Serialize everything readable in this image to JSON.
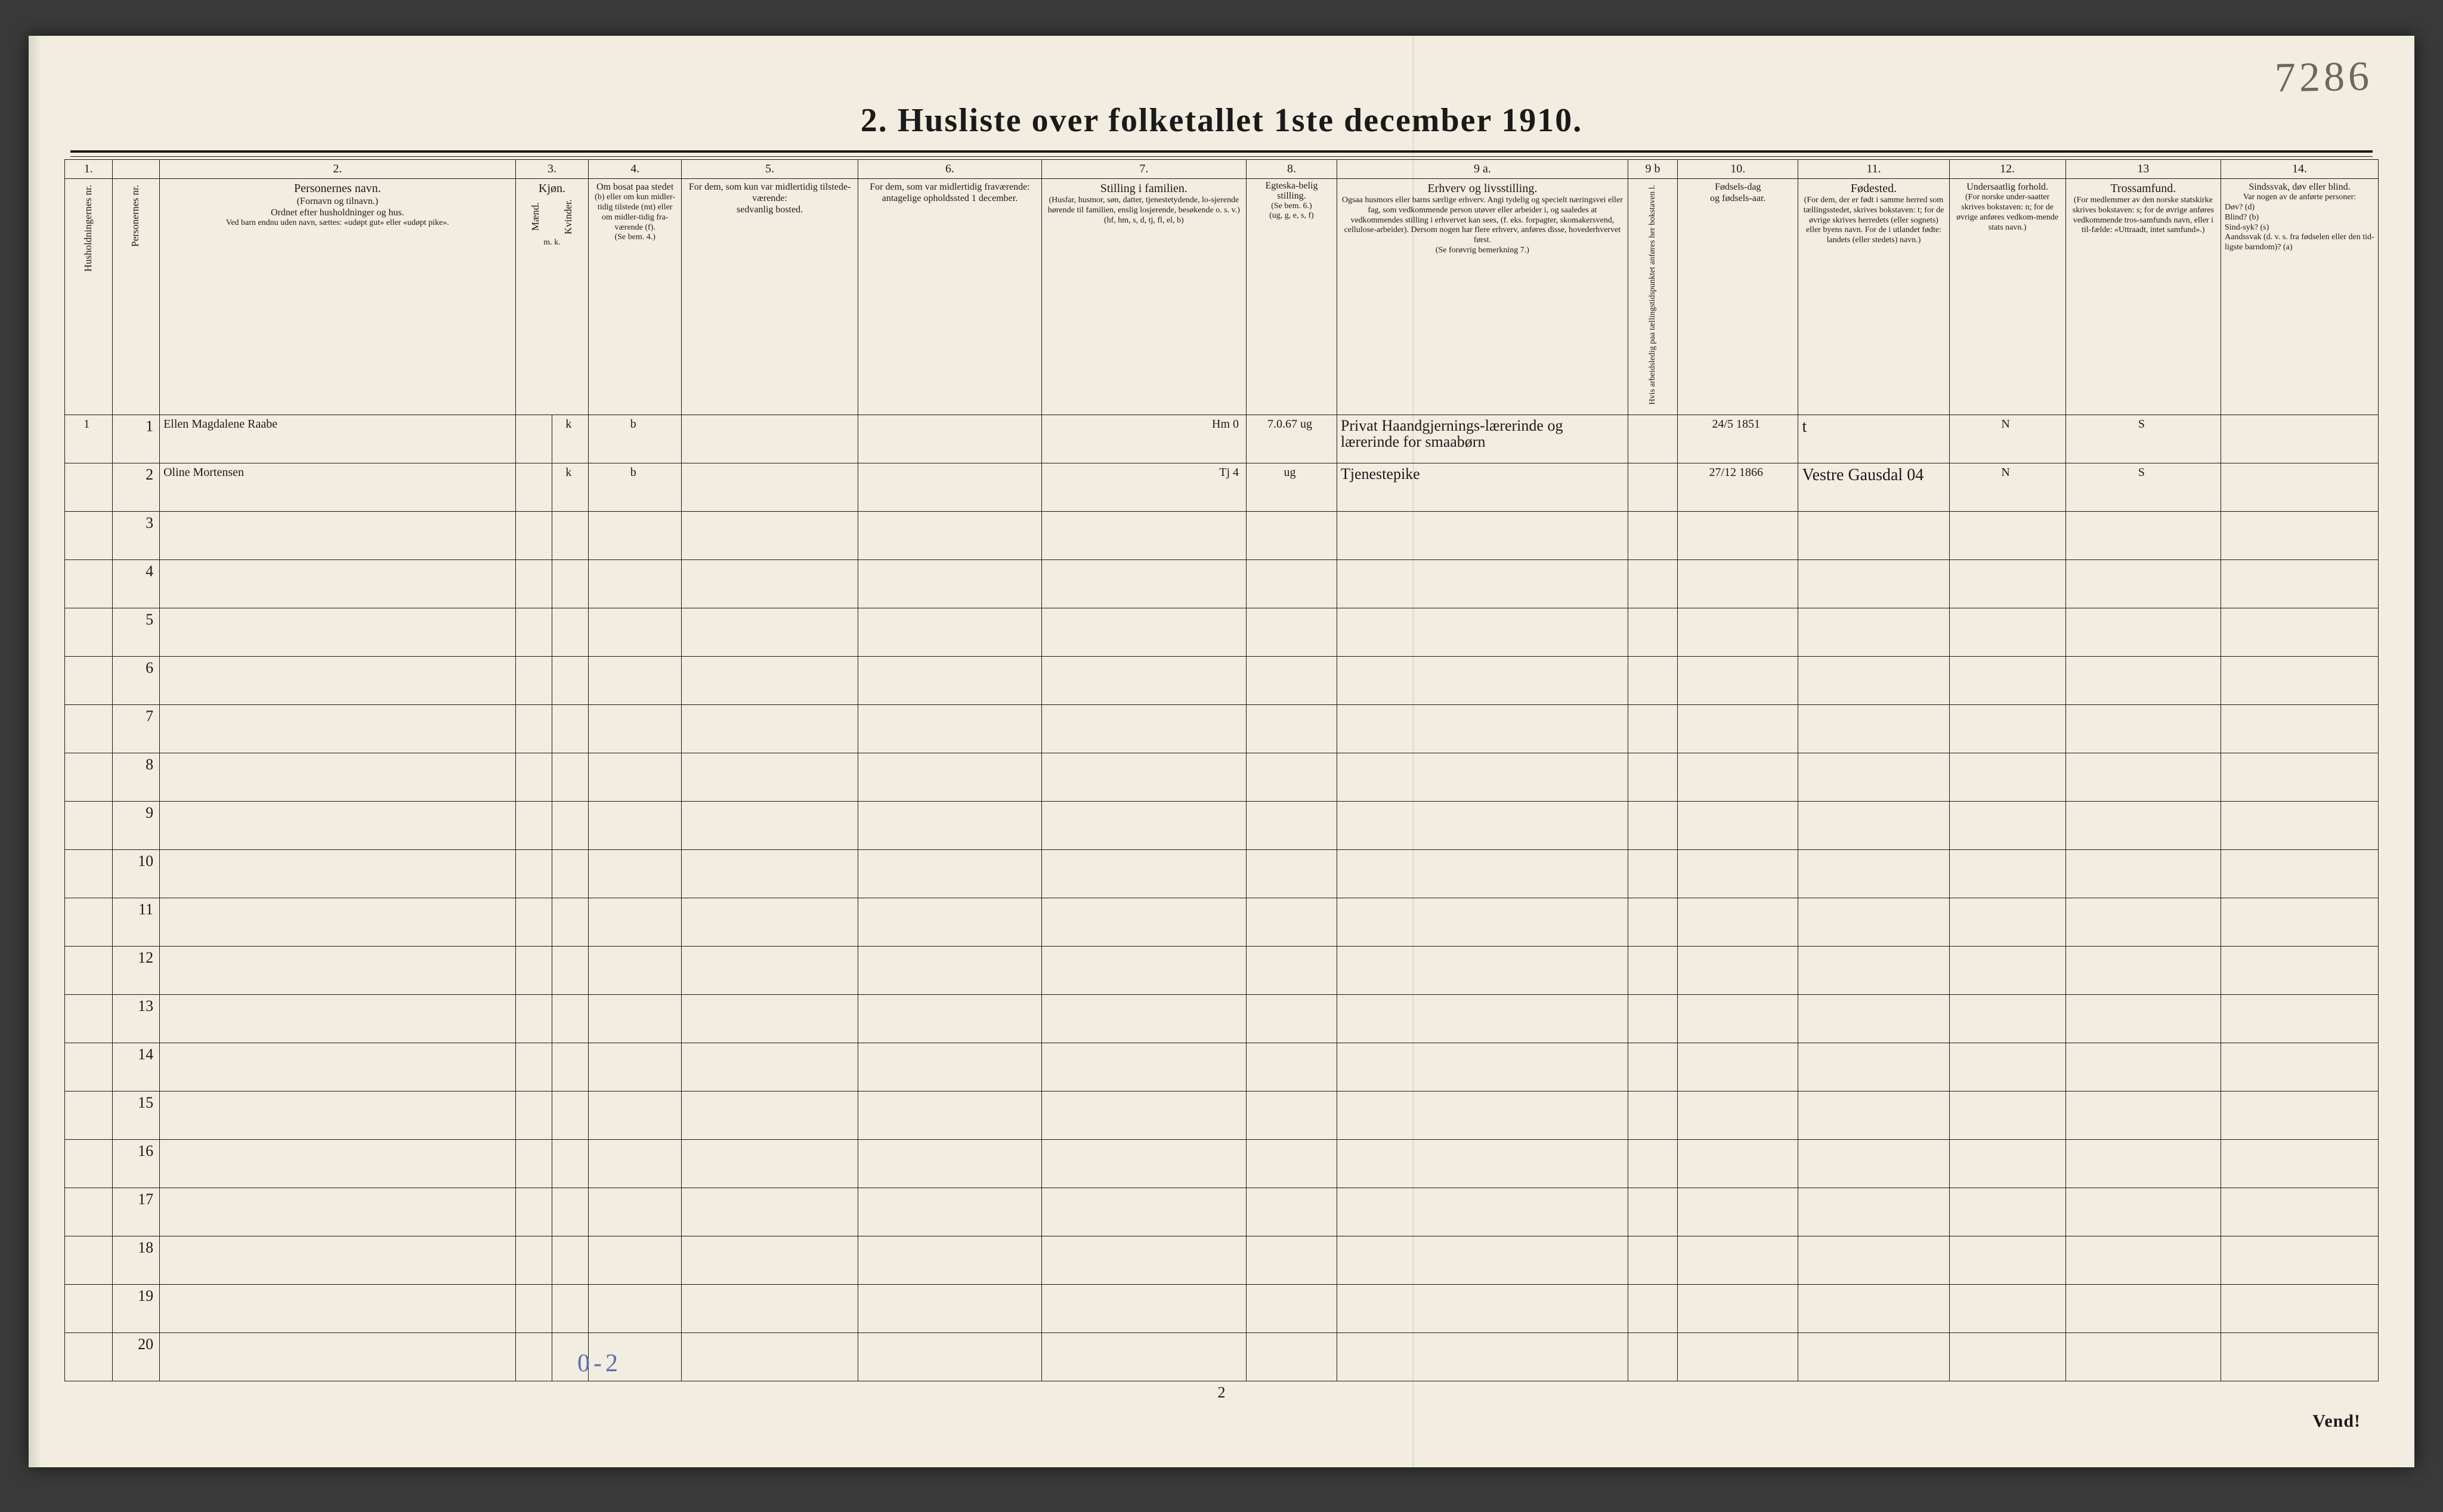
{
  "margin_number": "7286",
  "title": "2.  Husliste over folketallet 1ste december 1910.",
  "page_number": "2",
  "vend": "Vend!",
  "footer_hand": "0-2",
  "column_numbers": [
    "1.",
    "",
    "2.",
    "3.",
    "4.",
    "5.",
    "6.",
    "7.",
    "8.",
    "9 a.",
    "9 b",
    "10.",
    "11.",
    "12.",
    "13",
    "14."
  ],
  "headers": {
    "c1a": "Husholdningernes nr.",
    "c1b": "Personernes nr.",
    "c2_title": "Personernes navn.",
    "c2_sub1": "(Fornavn og tilnavn.)",
    "c2_sub2": "Ordnet efter husholdninger og hus.",
    "c2_sub3": "Ved barn endnu uden navn, sættes: «udøpt gut» eller «udøpt pike».",
    "c3_title": "Kjøn.",
    "c3_m": "Mænd.",
    "c3_k": "Kvinder.",
    "c3_foot": "m.  k.",
    "c4_title": "Om bosat paa stedet",
    "c4_body": "(b) eller om kun midler-tidig tilstede (mt) eller om midler-tidig fra-værende (f).",
    "c4_foot": "(Se bem. 4.)",
    "c5_title": "For dem, som kun var midlertidig tilstede-værende:",
    "c5_body": "sedvanlig bosted.",
    "c6_title": "For dem, som var midlertidig fraværende:",
    "c6_body": "antagelige opholdssted 1 december.",
    "c7_title": "Stilling i familien.",
    "c7_body": "(Husfar, husmor, søn, datter, tjenestetydende, lo-sjerende hørende til familien, enslig losjerende, besøkende o. s. v.)",
    "c7_foot": "(hf, hm, s, d, tj, fl, el, b)",
    "c8_title": "Egteska-belig stilling.",
    "c8_body": "(Se bem. 6.)",
    "c8_foot": "(ug, g, e, s, f)",
    "c9a_title": "Erhverv og livsstilling.",
    "c9a_body": "Ogsaa husmors eller barns særlige erhverv. Angi tydelig og specielt næringsvei eller fag, som vedkommende person utøver eller arbeider i, og saaledes at vedkommendes stilling i erhvervet kan sees, (f. eks. forpagter, skomakersvend, cellulose-arbeider). Dersom nogen har flere erhverv, anføres disse, hovederhvervet først.",
    "c9a_foot": "(Se forøvrig bemerkning 7.)",
    "c9b": "Hvis arbeidsledig paa tællingstidspunktet anføres her bokstaven l.",
    "c10_title": "Fødsels-dag",
    "c10_body": "og fødsels-aar.",
    "c11_title": "Fødested.",
    "c11_body": "(For dem, der er født i samme herred som tællingsstedet, skrives bokstaven: t; for de øvrige skrives herredets (eller sognets) eller byens navn. For de i utlandet fødte: landets (eller stedets) navn.)",
    "c12_title": "Undersaatlig forhold.",
    "c12_body": "(For norske under-saatter skrives bokstaven: n; for de øvrige anføres vedkom-mende stats navn.)",
    "c13_title": "Trossamfund.",
    "c13_body": "(For medlemmer av den norske statskirke skrives bokstaven: s; for de øvrige anføres vedkommende tros-samfunds navn, eller i til-fælde: «Uttraadt, intet samfund».)",
    "c14_title": "Sindssvak, døv eller blind.",
    "c14_body": "Var nogen av de anførte personer:",
    "c14_l1": "Døv?         (d)",
    "c14_l2": "Blind?       (b)",
    "c14_l3": "Sind-syk?  (s)",
    "c14_l4": "Aandssvak (d. v. s. fra fødselen eller den tid-ligste barndom)? (a)"
  },
  "rows": [
    {
      "hh": "1",
      "pn": "1",
      "name": "Ellen Magdalene Raabe",
      "sex": "k",
      "bosat": "b",
      "c5": "",
      "c6": "",
      "famst": "Hm   0",
      "egte": "7.0.67 ug",
      "erhverv": "Privat Haandgjernings-lærerinde og lærerinde for smaabørn",
      "c9b": "",
      "fdato": "24/5 1851",
      "fsted": "t",
      "unders": "N",
      "tros": "S",
      "c14": ""
    },
    {
      "hh": "",
      "pn": "2",
      "name": "Oline Mortensen",
      "sex": "k",
      "bosat": "b",
      "c5": "",
      "c6": "",
      "famst": "Tj   4",
      "egte": "ug",
      "erhverv": "Tjenestepike",
      "c9b": "",
      "fdato": "27/12 1866",
      "fsted": "Vestre Gausdal  04",
      "unders": "N",
      "tros": "S",
      "c14": ""
    }
  ],
  "empty_row_count": 18,
  "colors": {
    "paper": "#f2ede0",
    "ink": "#1a1a1a",
    "handwriting": "#3d3628",
    "blue_pencil": "#5b6fae",
    "margin_pencil": "#6a6a5a"
  },
  "colwidths_pct": [
    2.2,
    2.2,
    16.5,
    1.7,
    1.7,
    4.3,
    8.2,
    8.5,
    9.5,
    4.2,
    13.5,
    2.3,
    5.6,
    7.0,
    5.4,
    7.2,
    7.3
  ]
}
